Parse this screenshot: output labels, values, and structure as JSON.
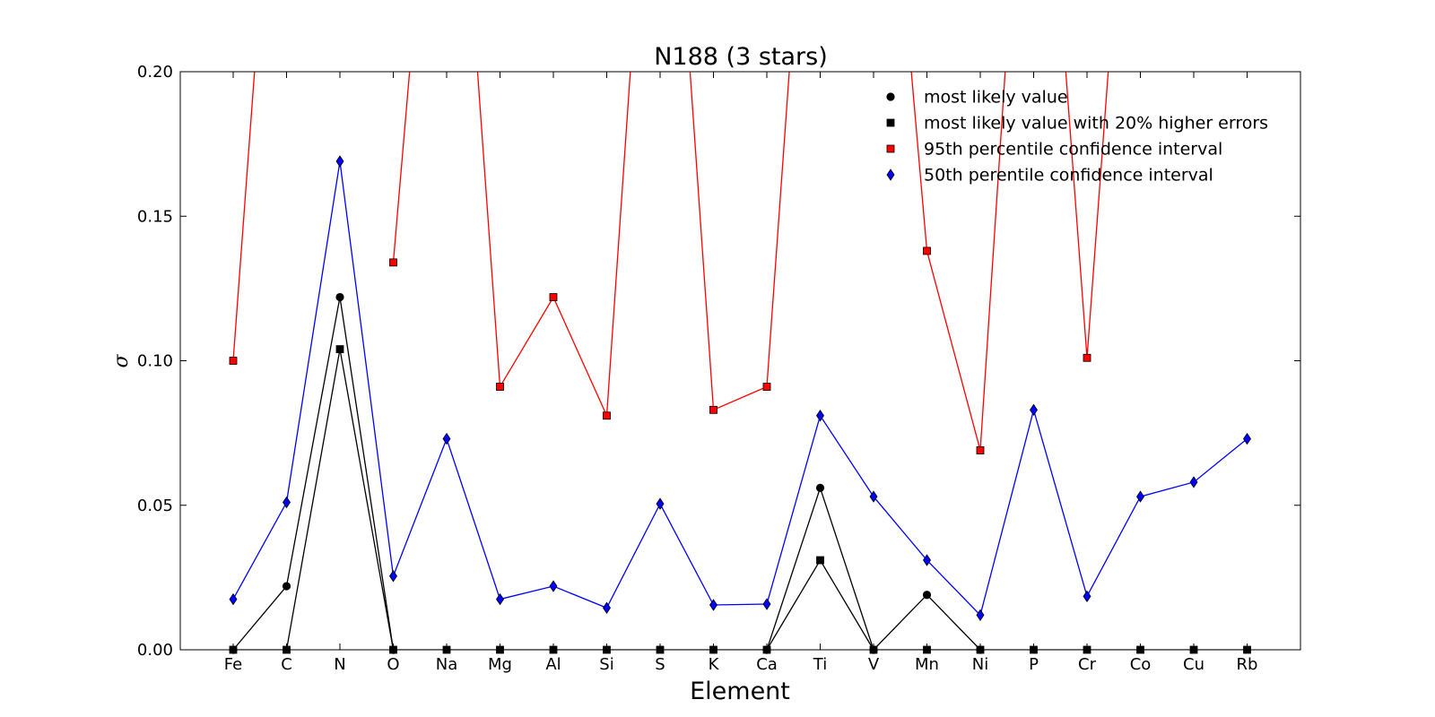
{
  "chart_data": {
    "type": "line",
    "title": "N188 (3 stars)",
    "xlabel": "Element",
    "ylabel": "σ",
    "categories": [
      "Fe",
      "C",
      "N",
      "O",
      "Na",
      "Mg",
      "Al",
      "Si",
      "S",
      "K",
      "Ca",
      "Ti",
      "V",
      "Mn",
      "Ni",
      "P",
      "Cr",
      "Co",
      "Cu",
      "Rb"
    ],
    "ylim": [
      0.0,
      0.2
    ],
    "yticks": [
      "0.00",
      "0.05",
      "0.10",
      "0.15",
      "0.20"
    ],
    "grid": false,
    "legend_position": "top-right",
    "series": [
      {
        "name": "most likely value",
        "marker": "circle",
        "line_color": "#000000",
        "marker_color": "#000000",
        "values": [
          0.0,
          0.022,
          0.122,
          0.0,
          null,
          null,
          null,
          null,
          null,
          null,
          0.0,
          0.056,
          0.0,
          0.019,
          0.0,
          null,
          null,
          null,
          null,
          null
        ]
      },
      {
        "name": "most likely value with 20% higher errors",
        "marker": "square",
        "line_color": "#000000",
        "marker_color": "#000000",
        "values": [
          0.0,
          0.0,
          0.104,
          0.0,
          0.0,
          0.0,
          0.0,
          0.0,
          0.0,
          0.0,
          0.0,
          0.031,
          0.0,
          0.0,
          0.0,
          0.0,
          0.0,
          0.0,
          0.0,
          0.0
        ]
      },
      {
        "name": "95th percentile confidence interval",
        "marker": "square",
        "line_color": "#ff0000",
        "marker_color": "#ff0000",
        "values": [
          0.1,
          0.35,
          null,
          0.134,
          0.35,
          0.091,
          0.122,
          0.081,
          0.35,
          0.083,
          0.091,
          0.35,
          0.35,
          0.138,
          0.069,
          0.35,
          0.101,
          0.35,
          null,
          null
        ]
      },
      {
        "name": "50th perentile confidence interval",
        "marker": "diamond",
        "line_color": "#0000ff",
        "marker_color": "#0000ff",
        "values": [
          0.0175,
          0.051,
          0.169,
          0.0255,
          0.073,
          0.0175,
          0.022,
          0.0145,
          0.0505,
          0.0155,
          0.0158,
          0.081,
          0.053,
          0.031,
          0.012,
          0.083,
          0.0185,
          0.053,
          0.058,
          0.073
        ]
      }
    ]
  }
}
